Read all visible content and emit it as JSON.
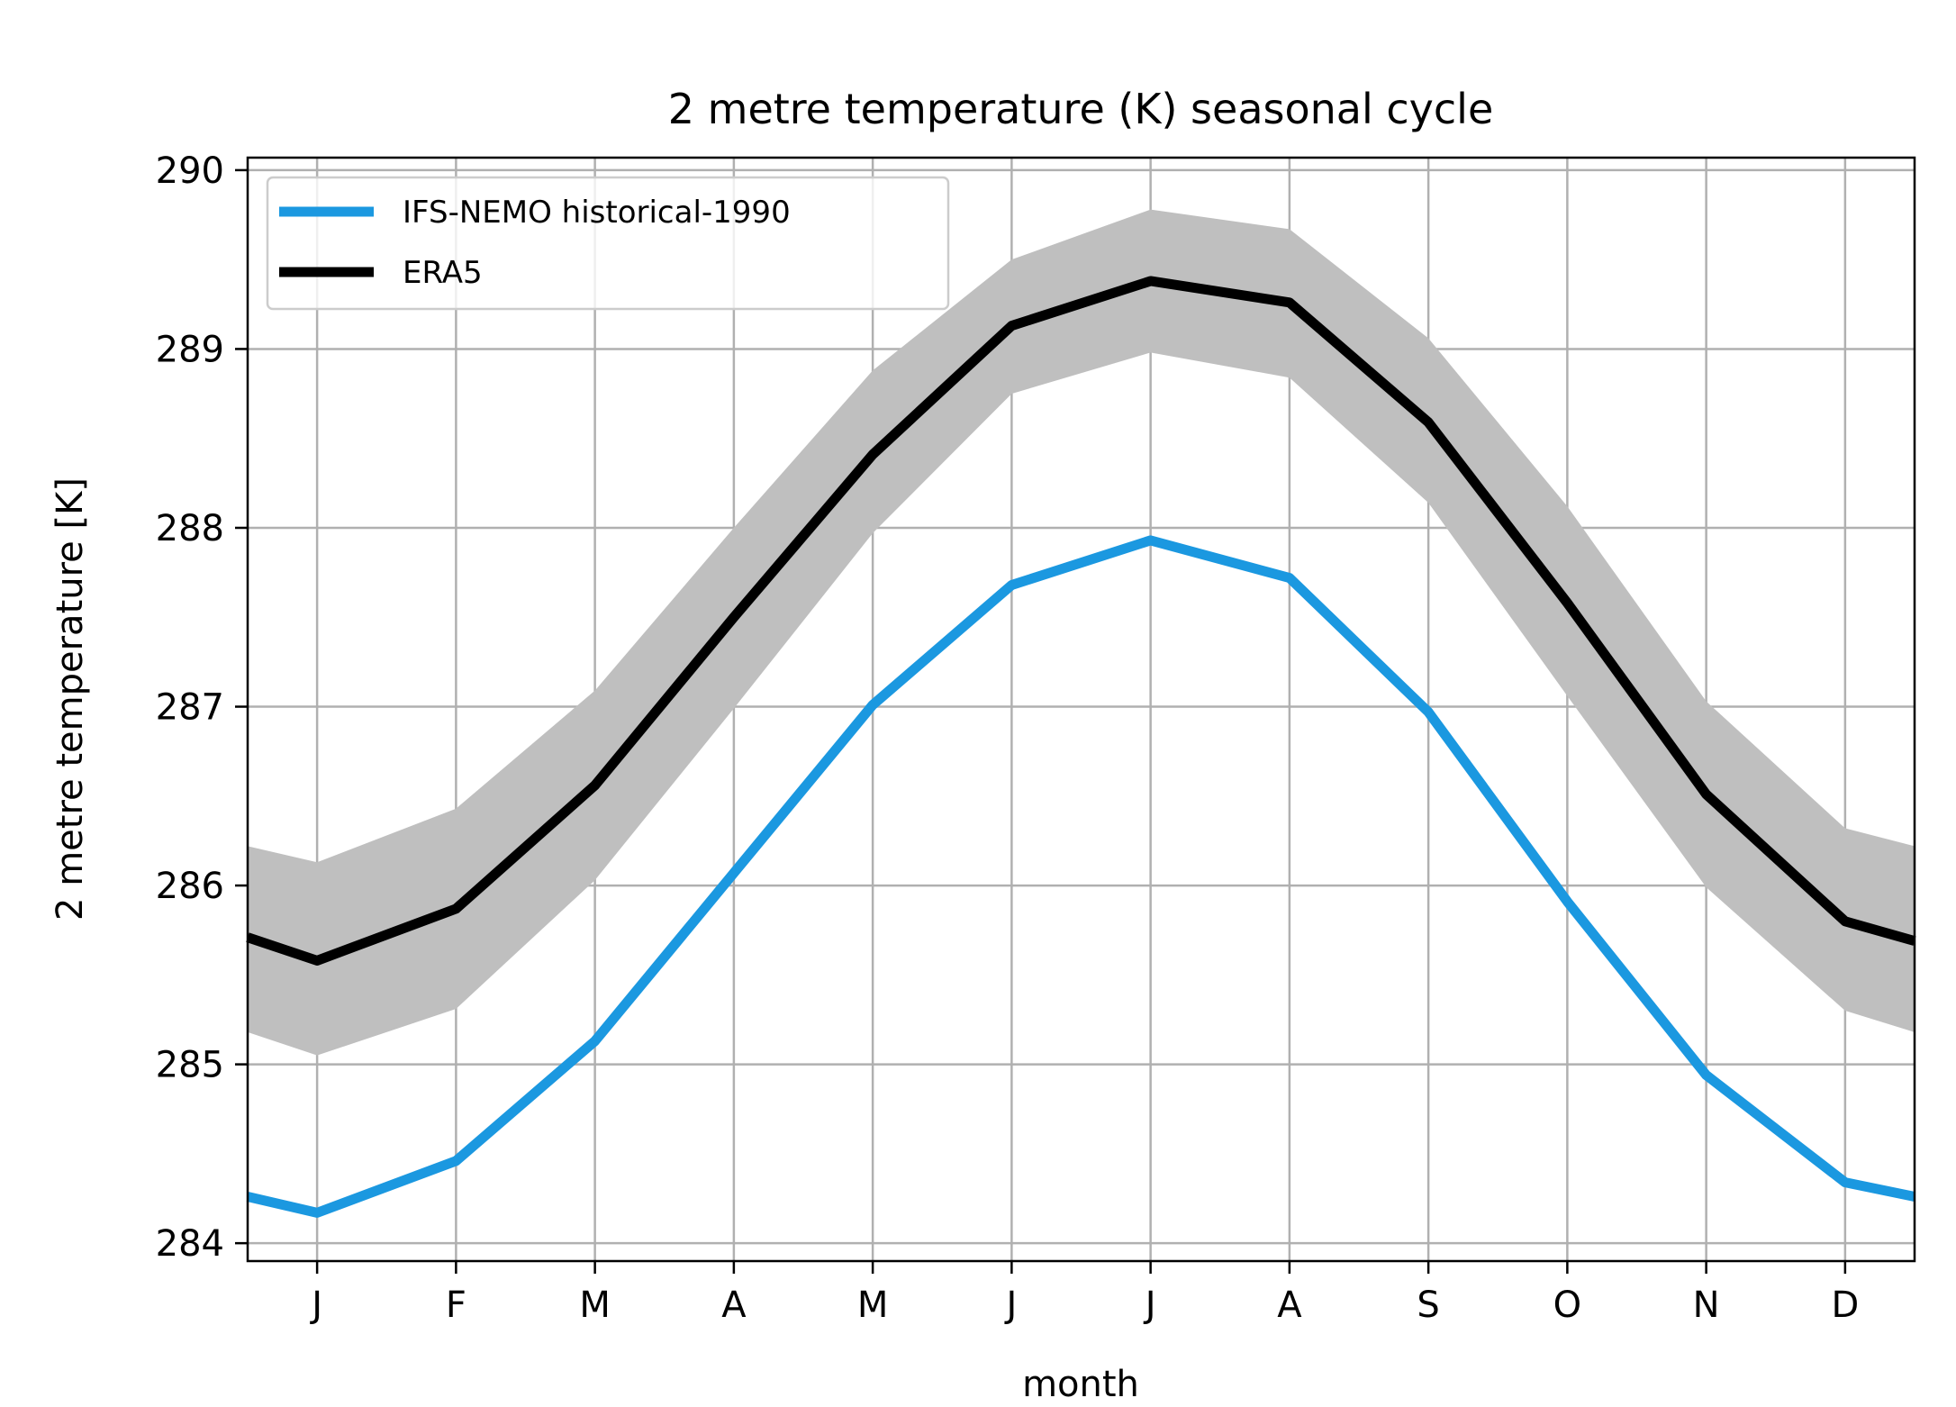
{
  "chart_data": {
    "type": "line",
    "title": "2 metre temperature (K) seasonal cycle",
    "xlabel": "month",
    "ylabel": "2 metre temperature [K]",
    "categories": [
      "J",
      "F",
      "M",
      "A",
      "M",
      "J",
      "J",
      "A",
      "S",
      "O",
      "N",
      "D"
    ],
    "xlim": [
      0.5,
      12.5
    ],
    "ylim": [
      283.9,
      290.07
    ],
    "yticks": [
      284,
      285,
      286,
      287,
      288,
      289,
      290
    ],
    "grid": true,
    "legend_position": "top-left",
    "series": [
      {
        "name": "IFS-NEMO historical-1990",
        "color": "#1b98e0",
        "x": [
          0.5,
          1,
          2,
          3,
          4,
          5,
          6,
          7,
          8,
          9,
          10,
          11,
          12,
          12.5
        ],
        "values": [
          284.26,
          284.17,
          284.46,
          285.13,
          286.07,
          287.01,
          287.68,
          287.93,
          287.72,
          286.97,
          285.91,
          284.94,
          284.34,
          284.26
        ]
      },
      {
        "name": "ERA5",
        "color": "#000000",
        "x": [
          0.5,
          1,
          2,
          3,
          4,
          5,
          6,
          7,
          8,
          9,
          10,
          11,
          12,
          12.5
        ],
        "values": [
          285.71,
          285.58,
          285.87,
          286.56,
          287.5,
          288.41,
          289.13,
          289.38,
          289.26,
          288.59,
          287.58,
          286.51,
          285.8,
          285.69
        ],
        "band_lower": [
          285.18,
          285.05,
          285.31,
          286.03,
          286.99,
          287.97,
          288.75,
          288.98,
          288.84,
          288.14,
          287.06,
          285.99,
          285.3,
          285.18
        ],
        "band_upper": [
          286.22,
          286.13,
          286.43,
          287.09,
          288.0,
          288.88,
          289.5,
          289.78,
          289.67,
          289.06,
          288.12,
          287.03,
          286.32,
          286.22
        ],
        "band_color": "#bfbfbf"
      }
    ]
  }
}
